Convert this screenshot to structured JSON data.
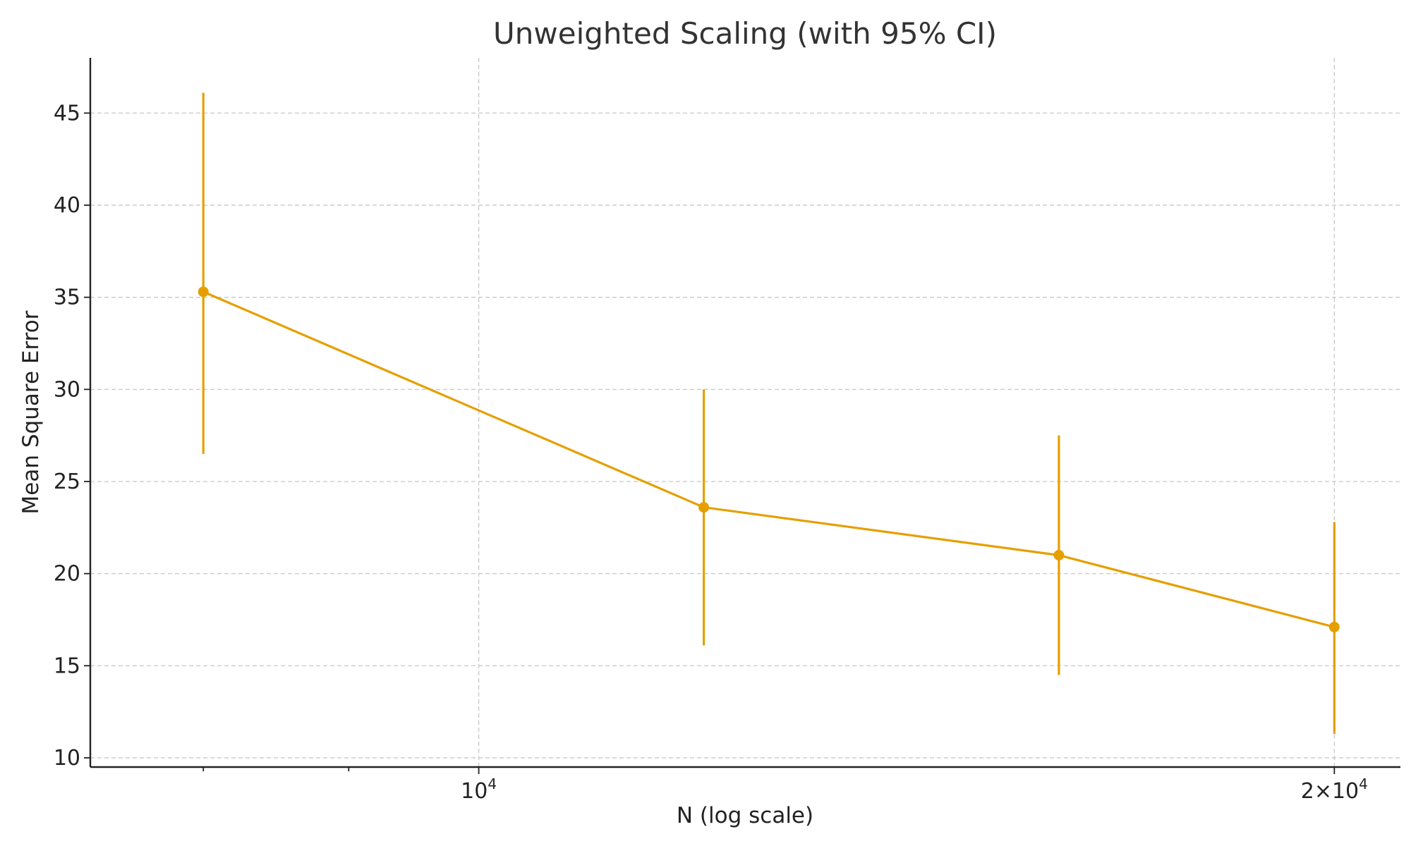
{
  "chart_data": {
    "type": "line",
    "title": "Unweighted Scaling (with 95% CI)",
    "xlabel": "N (log scale)",
    "ylabel": "Mean Square Error",
    "x_scale": "log",
    "xlim": [
      7300,
      21100
    ],
    "ylim": [
      9.5,
      48
    ],
    "grid": true,
    "color": "#e69f00",
    "x_ticks": [
      {
        "value": 10000,
        "base": "10",
        "exp": "4"
      },
      {
        "value": 20000,
        "base": "2×10",
        "exp": "4"
      }
    ],
    "x_minor_ticks": [
      8000,
      9000
    ],
    "y_ticks": [
      10,
      15,
      20,
      25,
      30,
      35,
      40,
      45
    ],
    "series": [
      {
        "points": [
          {
            "x": 8000,
            "y": 35.3,
            "lo": 26.5,
            "hi": 46.1
          },
          {
            "x": 12000,
            "y": 23.6,
            "lo": 16.1,
            "hi": 30.0
          },
          {
            "x": 16000,
            "y": 21.0,
            "lo": 14.5,
            "hi": 27.5
          },
          {
            "x": 20000,
            "y": 17.1,
            "lo": 11.3,
            "hi": 22.8
          }
        ]
      }
    ]
  }
}
